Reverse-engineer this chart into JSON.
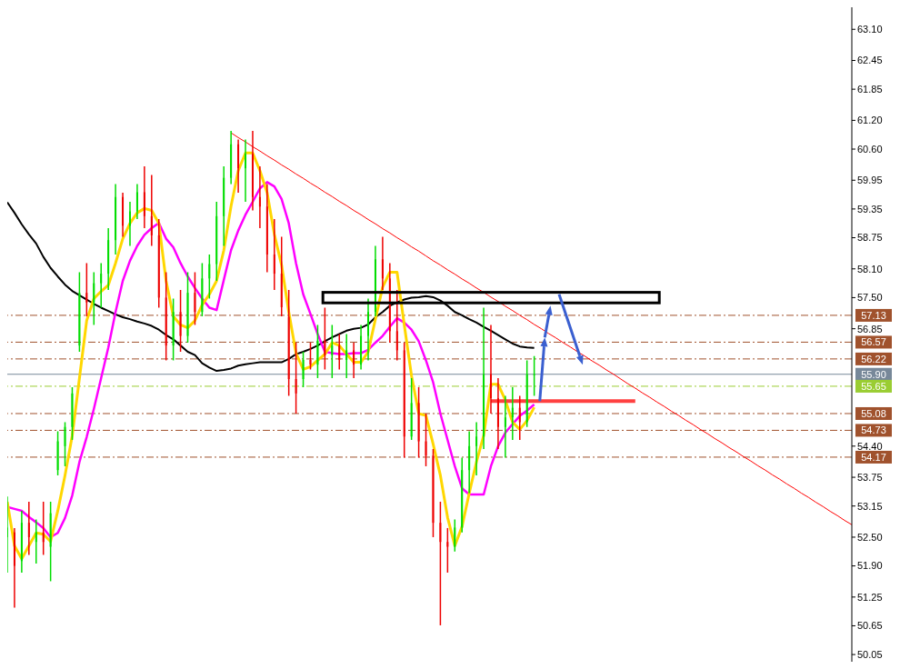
{
  "chart_data": {
    "type": "candlestick",
    "categories": [
      null,
      null,
      null,
      null,
      null,
      null,
      null,
      null,
      null,
      null,
      null,
      null,
      null,
      null,
      null,
      null,
      null,
      null,
      null,
      null,
      null,
      null,
      null,
      null,
      null,
      null,
      null,
      null,
      null,
      null,
      null,
      null,
      null,
      null,
      null,
      null,
      null,
      null,
      null,
      null,
      null,
      null,
      null,
      null,
      null,
      null,
      null,
      null,
      null,
      null,
      null,
      null,
      null,
      null,
      null,
      null,
      null,
      null,
      null,
      null,
      null,
      null,
      null,
      null,
      null,
      null,
      null,
      null,
      null,
      null,
      null,
      null,
      null,
      null,
      null,
      null,
      null,
      null,
      null,
      null,
      null,
      null,
      null,
      null,
      null,
      null,
      null,
      null,
      null,
      null,
      null,
      null,
      null,
      null,
      null,
      null,
      null,
      null,
      null,
      null,
      null,
      null,
      null,
      null,
      null,
      null,
      null,
      null,
      null,
      null,
      null,
      null,
      null,
      null,
      null,
      null,
      null,
      null
    ],
    "ohlc": [
      [
        52.5,
        53.35,
        51.76,
        52.7
      ],
      [
        52.6,
        52.69,
        51.03,
        51.9
      ],
      [
        52.0,
        53.05,
        51.76,
        52.8
      ],
      [
        52.8,
        53.24,
        52.13,
        52.5
      ],
      [
        52.4,
        52.87,
        51.95,
        52.6
      ],
      [
        52.6,
        53.24,
        52.13,
        52.4
      ],
      [
        52.3,
        53.24,
        51.58,
        53.0
      ],
      [
        53.9,
        54.71,
        53.79,
        54.5
      ],
      [
        54.4,
        54.9,
        53.98,
        54.8
      ],
      [
        54.8,
        55.63,
        54.53,
        55.5
      ],
      [
        56.5,
        58.03,
        56.37,
        57.6
      ],
      [
        57.6,
        58.22,
        57.11,
        57.4
      ],
      [
        57.4,
        58.03,
        56.93,
        57.8
      ],
      [
        57.8,
        58.22,
        57.29,
        58.0
      ],
      [
        58.0,
        58.95,
        57.66,
        58.7
      ],
      [
        58.7,
        59.87,
        58.4,
        59.6
      ],
      [
        59.6,
        59.69,
        58.77,
        59.0
      ],
      [
        59.0,
        59.5,
        58.58,
        59.3
      ],
      [
        59.3,
        59.87,
        59.14,
        59.7
      ],
      [
        59.7,
        60.24,
        58.95,
        59.2
      ],
      [
        59.2,
        60.06,
        58.58,
        58.8
      ],
      [
        58.8,
        59.14,
        57.29,
        57.5
      ],
      [
        57.5,
        58.03,
        56.19,
        56.5
      ],
      [
        56.5,
        57.48,
        56.19,
        57.2
      ],
      [
        57.2,
        57.66,
        56.37,
        56.7
      ],
      [
        56.7,
        58.03,
        56.56,
        57.6
      ],
      [
        57.6,
        58.03,
        56.93,
        57.2
      ],
      [
        57.2,
        58.22,
        57.11,
        57.9
      ],
      [
        57.9,
        58.4,
        57.48,
        58.2
      ],
      [
        58.2,
        59.5,
        57.85,
        59.2
      ],
      [
        59.2,
        60.24,
        58.58,
        60.0
      ],
      [
        60.0,
        60.98,
        59.87,
        60.7
      ],
      [
        60.7,
        60.8,
        59.69,
        60.2
      ],
      [
        60.2,
        60.8,
        59.5,
        60.5
      ],
      [
        60.5,
        60.98,
        59.32,
        59.6
      ],
      [
        59.6,
        60.24,
        58.95,
        59.4
      ],
      [
        59.4,
        59.87,
        58.03,
        58.4
      ],
      [
        58.4,
        59.14,
        57.66,
        58.0
      ],
      [
        58.0,
        58.77,
        57.11,
        57.3
      ],
      [
        57.1,
        57.66,
        55.45,
        55.8
      ],
      [
        55.8,
        56.56,
        55.08,
        55.5
      ],
      [
        55.8,
        56.37,
        55.63,
        56.2
      ],
      [
        56.2,
        56.56,
        56.0,
        56.1
      ],
      [
        56.1,
        56.93,
        55.82,
        56.6
      ],
      [
        56.6,
        57.29,
        56.0,
        56.3
      ],
      [
        56.3,
        56.93,
        55.82,
        56.5
      ],
      [
        56.5,
        56.74,
        56.0,
        56.2
      ],
      [
        56.2,
        56.74,
        55.82,
        56.4
      ],
      [
        56.4,
        56.56,
        55.82,
        56.1
      ],
      [
        56.1,
        56.93,
        56.0,
        56.7
      ],
      [
        56.7,
        57.48,
        56.19,
        57.2
      ],
      [
        57.2,
        58.58,
        57.11,
        58.3
      ],
      [
        58.3,
        58.77,
        57.66,
        57.9
      ],
      [
        57.9,
        58.22,
        56.56,
        56.8
      ],
      [
        56.8,
        57.66,
        56.19,
        56.4
      ],
      [
        56.4,
        56.56,
        54.16,
        54.6
      ],
      [
        54.6,
        55.82,
        54.53,
        55.3
      ],
      [
        55.3,
        55.63,
        54.16,
        54.5
      ],
      [
        54.5,
        55.08,
        53.98,
        54.2
      ],
      [
        54.2,
        54.34,
        52.5,
        52.8
      ],
      [
        52.8,
        53.24,
        50.66,
        52.4
      ],
      [
        52.4,
        52.69,
        51.76,
        52.3
      ],
      [
        52.3,
        52.87,
        52.2,
        52.7
      ],
      [
        52.7,
        54.16,
        52.6,
        53.9
      ],
      [
        53.9,
        54.71,
        53.42,
        54.4
      ],
      [
        54.4,
        54.9,
        53.79,
        54.6
      ],
      [
        54.6,
        57.29,
        54.34,
        55.9
      ],
      [
        55.9,
        56.93,
        55.08,
        55.4
      ],
      [
        55.4,
        55.82,
        54.34,
        54.8
      ],
      [
        54.8,
        55.45,
        54.16,
        55.0
      ],
      [
        55.0,
        55.63,
        54.53,
        55.2
      ],
      [
        55.2,
        55.45,
        54.53,
        54.9
      ],
      [
        54.9,
        56.19,
        54.8,
        55.9
      ],
      [
        55.9,
        56.28,
        55.45,
        55.9
      ],
      null,
      null,
      null,
      null,
      null,
      null,
      null,
      null,
      null,
      null,
      null,
      null,
      null,
      null,
      null,
      null,
      null,
      null,
      null,
      null,
      null,
      null,
      null,
      null,
      null,
      null,
      null,
      null,
      null,
      null,
      null,
      null,
      null,
      null,
      null,
      null,
      null,
      null,
      null,
      null,
      null,
      null,
      null,
      null
    ],
    "colors": [
      "#00dd00",
      "#ee0000",
      "#00dd00",
      "#ee0000",
      "#00dd00",
      "#ee0000",
      "#00dd00",
      "#00dd00",
      "#00dd00",
      "#00dd00",
      "#00dd00",
      "#ee0000",
      "#00dd00",
      "#00dd00",
      "#00dd00",
      "#00dd00",
      "#ee0000",
      "#00dd00",
      "#00dd00",
      "#ee0000",
      "#ee0000",
      "#ee0000",
      "#ee0000",
      "#00dd00",
      "#ee0000",
      "#00dd00",
      "#ee0000",
      "#00dd00",
      "#00dd00",
      "#00dd00",
      "#00dd00",
      "#00dd00",
      "#ee0000",
      "#00dd00",
      "#ee0000",
      "#ee0000",
      "#ee0000",
      "#ee0000",
      "#ee0000",
      "#ee0000",
      "#ee0000",
      "#00dd00",
      "#ee0000",
      "#00dd00",
      "#ee0000",
      "#00dd00",
      "#ee0000",
      "#00dd00",
      "#ee0000",
      "#00dd00",
      "#00dd00",
      "#00dd00",
      "#ee0000",
      "#ee0000",
      "#ee0000",
      "#ee0000",
      "#00dd00",
      "#ee0000",
      "#ee0000",
      "#ee0000",
      "#ee0000",
      "#ee0000",
      "#00dd00",
      "#00dd00",
      "#00dd00",
      "#00dd00",
      "#00dd00",
      "#ee0000",
      "#ee0000",
      "#00dd00",
      "#00dd00",
      "#ee0000",
      "#00dd00",
      "#00dd00",
      null,
      null,
      null,
      null,
      null,
      null,
      null,
      null,
      null,
      null,
      null,
      null,
      null,
      null,
      null,
      null,
      null,
      null,
      null,
      null,
      null,
      null,
      null,
      null,
      null,
      null,
      null,
      null,
      null,
      null,
      null,
      null,
      null,
      null,
      null,
      null,
      null,
      null,
      null,
      null,
      null,
      null,
      null,
      null
    ],
    "series": [
      {
        "type": "line",
        "color": "#000000",
        "values": [
          59.49,
          59.27,
          59.03,
          58.82,
          58.63,
          58.35,
          58.12,
          57.94,
          57.77,
          57.64,
          57.55,
          57.46,
          57.37,
          57.29,
          57.22,
          57.15,
          57.09,
          57.05,
          57.0,
          56.96,
          56.91,
          56.83,
          56.72,
          56.63,
          56.5,
          56.37,
          56.3,
          56.13,
          56.04,
          55.97,
          55.99,
          56.02,
          56.08,
          56.11,
          56.13,
          56.15,
          56.15,
          56.15,
          56.15,
          56.22,
          56.32,
          56.37,
          56.43,
          56.5,
          56.59,
          56.67,
          56.74,
          56.81,
          56.85,
          56.87,
          56.94,
          57.09,
          57.2,
          57.33,
          57.4,
          57.46,
          57.5,
          57.51,
          57.53,
          57.51,
          57.44,
          57.33,
          57.2,
          57.13,
          57.05,
          56.98,
          56.89,
          56.81,
          56.72,
          56.63,
          56.54,
          56.48,
          56.46,
          56.45,
          null,
          null,
          null,
          null,
          null,
          null,
          null,
          null,
          null,
          null,
          null,
          null,
          null,
          null,
          null,
          null,
          null,
          null,
          null,
          null,
          null,
          null,
          null,
          null,
          null,
          null,
          null,
          null,
          null,
          null,
          null,
          null,
          null,
          null,
          null,
          null,
          null,
          null,
          null,
          null,
          null,
          null,
          null,
          null
        ]
      },
      {
        "type": "line",
        "color": "#ff00ff",
        "values": [
          53.13,
          53.09,
          53.05,
          52.92,
          52.81,
          52.69,
          52.5,
          52.59,
          52.9,
          53.37,
          54.07,
          54.59,
          55.18,
          55.82,
          56.46,
          57.2,
          57.85,
          58.27,
          58.58,
          58.81,
          58.95,
          59.06,
          58.73,
          58.55,
          58.22,
          57.94,
          57.7,
          57.48,
          57.29,
          57.24,
          57.87,
          58.49,
          58.9,
          59.23,
          59.5,
          59.78,
          59.91,
          59.82,
          59.56,
          59.05,
          58.22,
          57.57,
          57.16,
          56.74,
          56.37,
          56.34,
          56.32,
          56.32,
          56.34,
          56.34,
          56.41,
          56.56,
          56.7,
          56.89,
          57.07,
          56.98,
          56.83,
          56.59,
          56.19,
          55.73,
          55.08,
          54.53,
          53.98,
          53.52,
          53.39,
          53.39,
          53.39,
          53.98,
          54.4,
          54.68,
          54.86,
          55.03,
          55.14,
          55.27,
          null,
          null,
          null,
          null,
          null,
          null,
          null,
          null,
          null,
          null,
          null,
          null,
          null,
          null,
          null,
          null,
          null,
          null,
          null,
          null,
          null,
          null,
          null,
          null,
          null,
          null,
          null,
          null,
          null,
          null,
          null,
          null,
          null,
          null,
          null,
          null,
          null,
          null,
          null,
          null,
          null,
          null,
          null,
          null
        ]
      },
      {
        "type": "line",
        "color": "#ffd700",
        "values": [
          53.24,
          52.32,
          52.05,
          52.32,
          52.59,
          52.56,
          52.41,
          53.05,
          53.79,
          54.62,
          55.82,
          57.02,
          57.48,
          57.63,
          57.76,
          58.22,
          58.73,
          59.05,
          59.27,
          59.36,
          59.32,
          59.05,
          57.85,
          57.11,
          56.93,
          56.87,
          57.02,
          57.35,
          57.57,
          57.85,
          58.49,
          59.41,
          60.15,
          60.52,
          60.52,
          60.15,
          59.69,
          58.82,
          58.18,
          57.2,
          56.34,
          56.0,
          56.06,
          56.19,
          56.32,
          56.56,
          56.5,
          56.32,
          56.15,
          56.15,
          56.37,
          57.05,
          57.72,
          58.03,
          58.03,
          56.93,
          55.87,
          55.08,
          55.04,
          54.44,
          53.79,
          52.91,
          52.32,
          52.72,
          53.42,
          54.07,
          54.62,
          55.69,
          55.69,
          55.36,
          54.9,
          54.75,
          54.93,
          55.21,
          null,
          null,
          null,
          null,
          null,
          null,
          null,
          null,
          null,
          null,
          null,
          null,
          null,
          null,
          null,
          null,
          null,
          null,
          null,
          null,
          null,
          null,
          null,
          null,
          null,
          null,
          null,
          null,
          null,
          null,
          null,
          null,
          null,
          null,
          null,
          null,
          null,
          null,
          null,
          null,
          null,
          null,
          null,
          null
        ]
      },
      {
        "type": "line",
        "color": "#ff0000",
        "values": [
          null,
          null,
          null,
          null,
          null,
          null,
          null,
          null,
          null,
          null,
          null,
          null,
          null,
          null,
          null,
          null,
          null,
          null,
          null,
          null,
          null,
          null,
          null,
          null,
          null,
          null,
          null,
          null,
          null,
          null,
          null,
          60.94,
          60.84,
          60.75,
          60.65,
          60.56,
          60.46,
          60.37,
          60.27,
          60.18,
          60.08,
          59.99,
          59.89,
          59.8,
          59.7,
          59.61,
          59.51,
          59.42,
          59.32,
          59.23,
          59.13,
          59.04,
          58.94,
          58.85,
          58.75,
          58.66,
          58.56,
          58.47,
          58.37,
          58.27,
          58.18,
          58.08,
          57.99,
          57.89,
          57.8,
          57.7,
          57.61,
          57.51,
          57.42,
          57.32,
          57.23,
          57.13,
          57.04,
          56.94,
          56.85,
          56.75,
          56.66,
          56.56,
          56.47,
          56.37,
          56.28,
          56.18,
          56.09,
          55.99,
          55.9,
          55.8,
          55.7,
          55.61,
          55.51,
          55.42,
          55.32,
          55.23,
          55.13,
          55.04,
          54.94,
          54.85,
          54.75,
          54.66,
          54.56,
          54.47,
          54.37,
          54.28,
          54.18,
          54.09,
          53.99,
          53.9,
          53.8,
          53.71,
          53.61,
          53.52,
          53.42,
          53.33,
          53.23,
          53.14,
          53.04,
          52.95,
          52.85,
          52.76
        ]
      },
      {
        "type": "line",
        "color": "#ff4040",
        "values": [
          null,
          null,
          null,
          null,
          null,
          null,
          null,
          null,
          null,
          null,
          null,
          null,
          null,
          null,
          null,
          null,
          null,
          null,
          null,
          null,
          null,
          null,
          null,
          null,
          null,
          null,
          null,
          null,
          null,
          null,
          null,
          null,
          null,
          null,
          null,
          null,
          null,
          null,
          null,
          null,
          null,
          null,
          null,
          null,
          null,
          null,
          null,
          null,
          null,
          null,
          null,
          null,
          null,
          null,
          null,
          null,
          null,
          null,
          null,
          null,
          null,
          null,
          null,
          null,
          null,
          null,
          null,
          55.34,
          55.34,
          55.34,
          55.34,
          55.34,
          55.34,
          55.34,
          55.34,
          55.34,
          55.34,
          55.34,
          55.34,
          55.34,
          55.34,
          55.34,
          55.34,
          55.34,
          55.34,
          55.34,
          55.34,
          55.34,
          null,
          null,
          null,
          null,
          null,
          null,
          null,
          null,
          null,
          null,
          null,
          null,
          null,
          null,
          null,
          null,
          null,
          null,
          null,
          null,
          null,
          null,
          null,
          null,
          null,
          null,
          null,
          null,
          null,
          null
        ]
      }
    ],
    "ylim": [
      49.9,
      63.56
    ],
    "yticks": [
      {
        "value": 63.1,
        "label": "63.10"
      },
      {
        "value": 62.45,
        "label": "62.45"
      },
      {
        "value": 61.85,
        "label": "61.85"
      },
      {
        "value": 61.2,
        "label": "61.20"
      },
      {
        "value": 60.6,
        "label": "60.60"
      },
      {
        "value": 59.95,
        "label": "59.95"
      },
      {
        "value": 59.35,
        "label": "59.35"
      },
      {
        "value": 58.75,
        "label": "58.75"
      },
      {
        "value": 58.1,
        "label": "58.10"
      },
      {
        "value": 57.5,
        "label": "57.50"
      },
      {
        "value": 56.85,
        "label": "56.85"
      },
      {
        "value": 54.4,
        "label": "54.40"
      },
      {
        "value": 53.75,
        "label": "53.75"
      },
      {
        "value": 53.15,
        "label": "53.15"
      },
      {
        "value": 52.5,
        "label": "52.50"
      },
      {
        "value": 51.9,
        "label": "51.90"
      },
      {
        "value": 51.25,
        "label": "51.25"
      },
      {
        "value": 50.65,
        "label": "50.65"
      },
      {
        "value": 50.05,
        "label": "50.05"
      }
    ],
    "ref_lines": [
      {
        "axis": "y",
        "value": 57.13,
        "label": "57.13",
        "color": "#a0522d",
        "line_style": "dashed"
      },
      {
        "axis": "y",
        "value": 56.57,
        "label": "56.57",
        "color": "#a0522d",
        "line_style": "dashed"
      },
      {
        "axis": "y",
        "value": 56.22,
        "label": "56.22",
        "color": "#a0522d",
        "line_style": "dashed"
      },
      {
        "axis": "y",
        "value": 55.9,
        "label": "55.90",
        "color": "#778899",
        "line_style": "solid"
      },
      {
        "axis": "y",
        "value": 55.65,
        "label": "55.65",
        "color": "#9acd32",
        "line_style": "dashed"
      },
      {
        "axis": "y",
        "value": 55.08,
        "label": "55.08",
        "color": "#a0522d",
        "line_style": "dashed"
      },
      {
        "axis": "y",
        "value": 54.73,
        "label": "54.73",
        "color": "#a0522d",
        "line_style": "dashed"
      },
      {
        "axis": "y",
        "value": 54.17,
        "label": "54.17",
        "color": "#a0522d",
        "line_style": "dashed"
      }
    ],
    "grid": false,
    "legend": false,
    "marker": "none",
    "line_style": "solid",
    "tick_labels": "y"
  }
}
